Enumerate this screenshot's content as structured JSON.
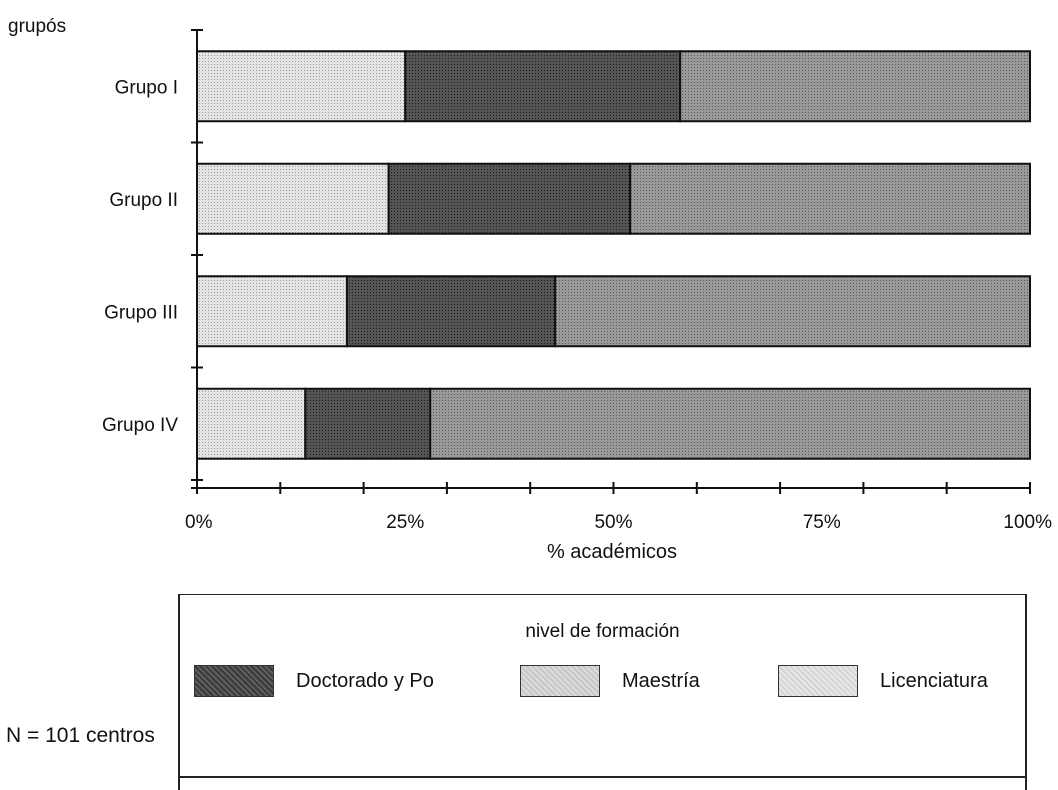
{
  "chart_data": {
    "type": "bar",
    "orientation": "horizontal",
    "stacked": true,
    "categories": [
      "Grupo I",
      "Grupo II",
      "Grupo III",
      "Grupo IV"
    ],
    "series": [
      {
        "name": "Licenciatura",
        "values": [
          25,
          23,
          18,
          13
        ],
        "color": "#d0d0d0"
      },
      {
        "name": "Doctorado y Po",
        "values": [
          33,
          29,
          25,
          15
        ],
        "color": "#4a4a4a"
      },
      {
        "name": "Maestría",
        "values": [
          42,
          48,
          57,
          72
        ],
        "color": "#8e8e8e"
      }
    ],
    "xlabel": "% académicos",
    "ylabel": "grupós",
    "xlim": [
      0,
      100
    ],
    "x_ticks": [
      "0%",
      "25%",
      "50%",
      "75%",
      "100%"
    ],
    "legend_title": "nivel de formación",
    "legend_entries": [
      "Doctorado y Po",
      "Maestría",
      "Licenciatura"
    ],
    "legend_placement": "bottom",
    "grid": false
  },
  "note": "N = 101 centros"
}
